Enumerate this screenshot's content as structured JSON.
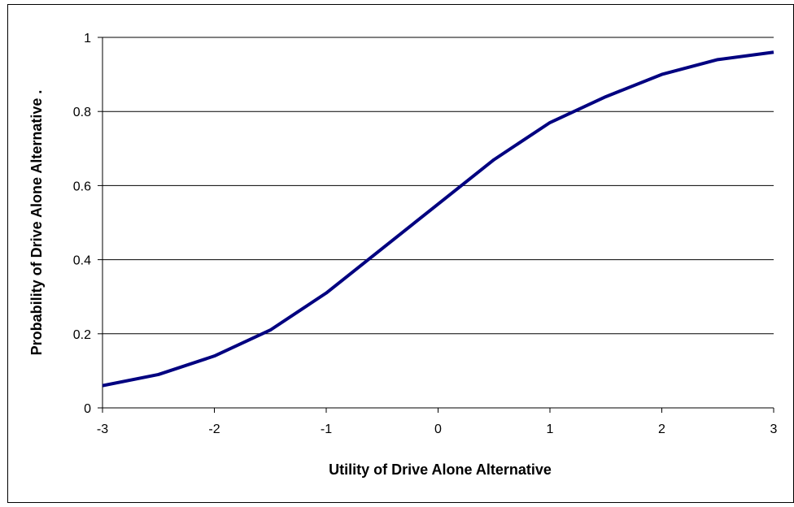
{
  "chart_data": {
    "type": "line",
    "xlabel": "Utility of Drive Alone Alternative",
    "ylabel": "Probability of Drive Alone Alternative    .",
    "x": [
      -3,
      -2.5,
      -2,
      -1.5,
      -1,
      -0.5,
      0,
      0.5,
      1,
      1.5,
      2,
      2.5,
      3
    ],
    "values": [
      0.06,
      0.09,
      0.14,
      0.21,
      0.31,
      0.43,
      0.55,
      0.67,
      0.77,
      0.84,
      0.9,
      0.94,
      0.96
    ],
    "color": "#000080",
    "xlim": [
      -3,
      3
    ],
    "xticks": [
      -3,
      -2,
      -1,
      0,
      1,
      2,
      3
    ],
    "ylim": [
      0,
      1
    ],
    "yticks": [
      0,
      0.2,
      0.4,
      0.6,
      0.8,
      1
    ],
    "grid": true
  }
}
